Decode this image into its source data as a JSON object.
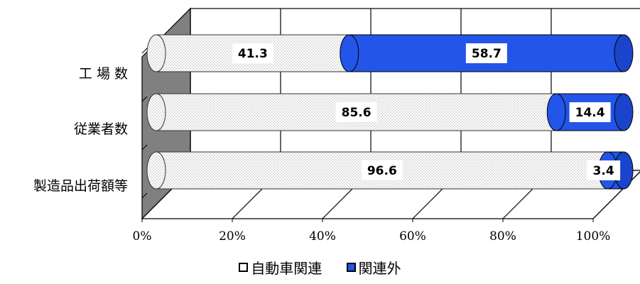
{
  "chart_data": {
    "type": "bar",
    "orientation": "horizontal",
    "stacked": "percent",
    "three_d": true,
    "categories": [
      "工 場 数",
      "従業者数",
      "製造品出荷額等"
    ],
    "series": [
      {
        "name": "自動車関連",
        "values": [
          41.3,
          85.6,
          96.6
        ],
        "color": "#f4f4f4"
      },
      {
        "name": "関連外",
        "values": [
          58.7,
          14.4,
          3.4
        ],
        "color": "#2255e8"
      }
    ],
    "x_ticks": [
      "0%",
      "20%",
      "40%",
      "60%",
      "80%",
      "100%"
    ],
    "xlim": [
      0,
      100
    ],
    "grid": true,
    "legend_position": "bottom",
    "title": "",
    "xlabel": "",
    "ylabel": ""
  }
}
